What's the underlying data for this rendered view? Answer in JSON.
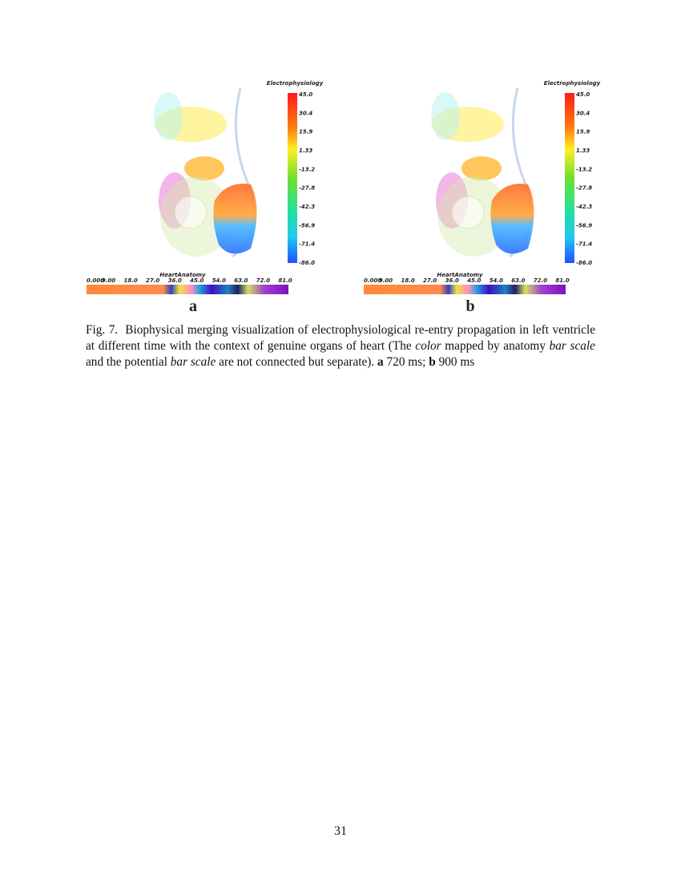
{
  "panels": [
    {
      "colorbar_title": "Electrophysiology",
      "colorbar_ticks": [
        "45.0",
        "30.4",
        "15.9",
        "1.33",
        "-13.2",
        "-27.8",
        "-42.3",
        "-56.9",
        "-71.4",
        "-86.0"
      ],
      "anatomy_title": "HeartAnatomy",
      "anatomy_ticks": [
        "0.000",
        "9.00",
        "18.0",
        "27.0",
        "36.0",
        "45.0",
        "54.0",
        "63.0",
        "72.0",
        "81.0"
      ],
      "label": "a"
    },
    {
      "colorbar_title": "Electrophysiology",
      "colorbar_ticks": [
        "45.0",
        "30.4",
        "15.9",
        "1.33",
        "-13.2",
        "-27.8",
        "-42.3",
        "-56.9",
        "-71.4",
        "-86.0"
      ],
      "anatomy_title": "HeartAnatomy",
      "anatomy_ticks": [
        "0.000",
        "9.00",
        "18.0",
        "27.0",
        "36.0",
        "45.0",
        "54.0",
        "63.0",
        "72.0",
        "81.0"
      ],
      "label": "b"
    }
  ],
  "caption": [
    {
      "text": "Fig. 7.  Biophysical merging visualization of electrophysiological re-entry propagation in left ventricle at different time with the context of genuine organs of heart (The ",
      "style": "normal"
    },
    {
      "text": "color",
      "style": "italic"
    },
    {
      "text": " mapped by anatomy ",
      "style": "normal"
    },
    {
      "text": "bar scale",
      "style": "italic"
    },
    {
      "text": " and the potential ",
      "style": "normal"
    },
    {
      "text": "bar scale",
      "style": "italic"
    },
    {
      "text": " are not connected but separate). ",
      "style": "normal"
    },
    {
      "text": "a",
      "style": "bold"
    },
    {
      "text": " 720 ms; ",
      "style": "normal"
    },
    {
      "text": "b",
      "style": "bold"
    },
    {
      "text": " 900 ms",
      "style": "normal"
    }
  ],
  "page_number": "31"
}
